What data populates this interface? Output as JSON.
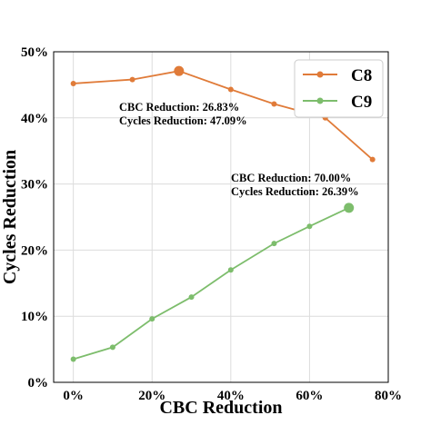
{
  "chart_data": {
    "type": "line",
    "xlabel": "CBC Reduction",
    "ylabel": "Cycles Reduction",
    "xlim": [
      -5,
      80
    ],
    "ylim": [
      0,
      50
    ],
    "x_ticks": [
      0,
      20,
      40,
      60,
      80
    ],
    "x_tick_labels": [
      "0%",
      "20%",
      "40%",
      "60%",
      "80%"
    ],
    "y_ticks": [
      0,
      10,
      20,
      30,
      40,
      50
    ],
    "y_tick_labels": [
      "0%",
      "10%",
      "20%",
      "30%",
      "40%",
      "50%"
    ],
    "grid": true,
    "legend_position": "top-right",
    "series": [
      {
        "name": "C8",
        "color": "#e07b39",
        "x": [
          0,
          15,
          26.83,
          40,
          51,
          64,
          76
        ],
        "y": [
          45.2,
          45.8,
          47.09,
          44.3,
          42.1,
          40.0,
          33.7
        ],
        "highlight": {
          "x": 26.83,
          "y": 47.09
        }
      },
      {
        "name": "C9",
        "color": "#7dbd6c",
        "x": [
          0,
          10,
          20,
          30,
          40,
          51,
          60,
          70
        ],
        "y": [
          3.5,
          5.3,
          9.6,
          12.9,
          17.0,
          21.0,
          23.6,
          26.39
        ],
        "highlight": {
          "x": 70.0,
          "y": 26.39
        }
      }
    ],
    "annotations": [
      {
        "line1": "CBC Reduction: 26.83%",
        "line2": "Cycles Reduction: 47.09%"
      },
      {
        "line1": "CBC Reduction: 70.00%",
        "line2": "Cycles Reduction: 26.39%"
      }
    ]
  }
}
